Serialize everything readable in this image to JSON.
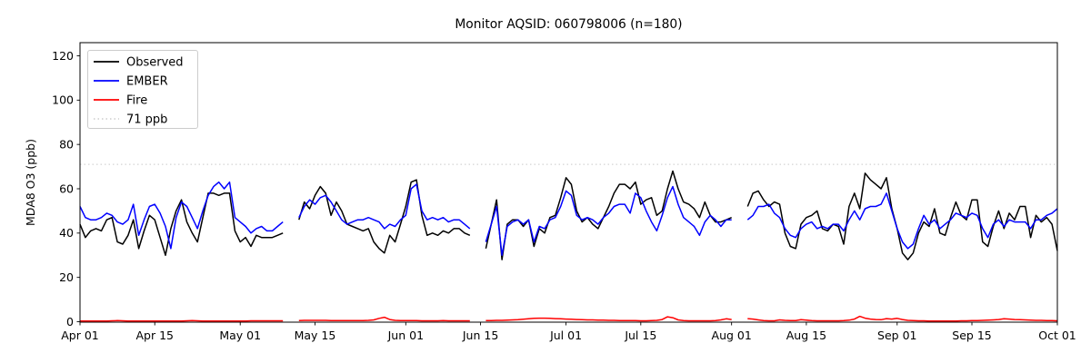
{
  "figure": {
    "background_color": "#ffffff",
    "text_color": "#000000",
    "spine_color": "#000000"
  },
  "chart_data": {
    "type": "line",
    "title": "Monitor AQSID: 060798006 (n=180)",
    "xlabel": "",
    "ylabel": "MDA8 O3 (ppb)",
    "ylim": [
      0,
      120
    ],
    "yticks": [
      0,
      20,
      40,
      60,
      80,
      100,
      120
    ],
    "grid": false,
    "legend_position": "upper-left",
    "x_unit": "day-index from Apr 01",
    "x_range_days": [
      0,
      183
    ],
    "xticks": [
      {
        "day": 0,
        "label": "Apr 01"
      },
      {
        "day": 14,
        "label": "Apr 15"
      },
      {
        "day": 30,
        "label": "May 01"
      },
      {
        "day": 44,
        "label": "May 15"
      },
      {
        "day": 61,
        "label": "Jun 01"
      },
      {
        "day": 75,
        "label": "Jun 15"
      },
      {
        "day": 91,
        "label": "Jul 01"
      },
      {
        "day": 105,
        "label": "Jul 15"
      },
      {
        "day": 122,
        "label": "Aug 01"
      },
      {
        "day": 136,
        "label": "Aug 15"
      },
      {
        "day": 153,
        "label": "Sep 01"
      },
      {
        "day": 167,
        "label": "Sep 15"
      },
      {
        "day": 183,
        "label": "Oct 01"
      }
    ],
    "reference_line": {
      "label": "71 ppb",
      "value": 71,
      "color": "#d4d4d4",
      "style": "dotted"
    },
    "data_gaps_days": [
      "May 10-11",
      "Jun 14-15",
      "Aug 02-03"
    ],
    "series": [
      {
        "name": "Observed",
        "color": "#000000",
        "values": [
          44,
          38,
          41,
          42,
          41,
          46,
          47,
          36,
          35,
          39,
          46,
          33,
          41,
          48,
          46,
          38,
          30,
          42,
          50,
          55,
          45,
          40,
          36,
          47,
          58,
          58,
          57,
          58,
          58,
          41,
          36,
          38,
          34,
          39,
          38,
          38,
          38,
          39,
          40,
          null,
          null,
          46,
          54,
          51,
          57,
          61,
          58,
          48,
          54,
          50,
          44,
          43,
          42,
          41,
          42,
          36,
          33,
          31,
          39,
          36,
          44,
          52,
          63,
          64,
          48,
          39,
          40,
          39,
          41,
          40,
          42,
          42,
          40,
          39,
          null,
          null,
          33,
          44,
          55,
          28,
          44,
          46,
          46,
          43,
          46,
          34,
          42,
          40,
          47,
          48,
          56,
          65,
          62,
          50,
          45,
          47,
          44,
          42,
          47,
          52,
          58,
          62,
          62,
          60,
          63,
          53,
          55,
          56,
          48,
          50,
          60,
          68,
          60,
          54,
          53,
          51,
          47,
          54,
          48,
          45,
          45,
          46,
          47,
          null,
          null,
          52,
          58,
          59,
          55,
          52,
          54,
          53,
          40,
          34,
          33,
          44,
          47,
          48,
          50,
          42,
          41,
          44,
          43,
          35,
          52,
          58,
          51,
          67,
          64,
          62,
          60,
          65,
          51,
          42,
          31,
          28,
          31,
          40,
          45,
          43,
          51,
          40,
          39,
          47,
          54,
          48,
          46,
          55,
          55,
          36,
          34,
          43,
          50,
          42,
          49,
          46,
          52,
          52,
          38,
          48,
          45,
          47,
          44,
          32
        ]
      },
      {
        "name": "EMBER",
        "color": "#0000ff",
        "values": [
          52,
          47,
          46,
          46,
          47,
          49,
          48,
          45,
          44,
          46,
          53,
          39,
          46,
          52,
          53,
          49,
          43,
          33,
          47,
          54,
          52,
          47,
          42,
          50,
          57,
          61,
          63,
          60,
          63,
          47,
          45,
          43,
          40,
          42,
          43,
          41,
          41,
          43,
          45,
          null,
          null,
          47,
          52,
          55,
          53,
          56,
          57,
          54,
          50,
          46,
          44,
          45,
          46,
          46,
          47,
          46,
          45,
          42,
          44,
          43,
          46,
          48,
          60,
          62,
          50,
          46,
          47,
          46,
          47,
          45,
          46,
          46,
          44,
          42,
          null,
          null,
          36,
          44,
          52,
          30,
          43,
          45,
          46,
          44,
          46,
          36,
          43,
          42,
          46,
          47,
          52,
          59,
          57,
          48,
          46,
          47,
          46,
          44,
          47,
          49,
          52,
          53,
          53,
          49,
          58,
          56,
          50,
          45,
          41,
          48,
          56,
          61,
          53,
          47,
          45,
          43,
          39,
          45,
          48,
          46,
          43,
          46,
          46,
          null,
          null,
          46,
          48,
          52,
          52,
          53,
          49,
          47,
          42,
          39,
          38,
          42,
          44,
          45,
          42,
          43,
          42,
          44,
          44,
          41,
          46,
          50,
          46,
          51,
          52,
          52,
          53,
          58,
          50,
          42,
          36,
          33,
          35,
          42,
          48,
          44,
          46,
          42,
          44,
          46,
          49,
          48,
          47,
          49,
          48,
          42,
          38,
          44,
          46,
          43,
          46,
          45,
          45,
          45,
          42,
          46,
          46,
          48,
          49,
          51
        ]
      },
      {
        "name": "Fire",
        "color": "#ff0000",
        "values": [
          0.3,
          0.3,
          0.3,
          0.3,
          0.3,
          0.3,
          0.4,
          0.5,
          0.4,
          0.3,
          0.3,
          0.3,
          0.3,
          0.3,
          0.3,
          0.3,
          0.3,
          0.3,
          0.3,
          0.3,
          0.4,
          0.5,
          0.4,
          0.3,
          0.3,
          0.3,
          0.3,
          0.3,
          0.3,
          0.3,
          0.3,
          0.3,
          0.4,
          0.4,
          0.4,
          0.4,
          0.4,
          0.4,
          0.4,
          null,
          null,
          0.5,
          0.6,
          0.6,
          0.6,
          0.6,
          0.6,
          0.5,
          0.5,
          0.5,
          0.5,
          0.5,
          0.5,
          0.5,
          0.6,
          0.8,
          1.5,
          2.0,
          1.0,
          0.6,
          0.5,
          0.5,
          0.5,
          0.5,
          0.4,
          0.4,
          0.4,
          0.4,
          0.5,
          0.4,
          0.4,
          0.4,
          0.4,
          0.4,
          null,
          null,
          0.5,
          0.5,
          0.6,
          0.6,
          0.7,
          0.8,
          0.9,
          1.1,
          1.3,
          1.5,
          1.6,
          1.6,
          1.5,
          1.4,
          1.3,
          1.2,
          1.1,
          1.0,
          0.9,
          0.8,
          0.8,
          0.7,
          0.7,
          0.6,
          0.6,
          0.5,
          0.5,
          0.5,
          0.5,
          0.4,
          0.4,
          0.5,
          0.6,
          1.0,
          2.2,
          1.8,
          0.8,
          0.5,
          0.4,
          0.4,
          0.4,
          0.4,
          0.4,
          0.5,
          0.8,
          1.3,
          1.0,
          null,
          null,
          1.4,
          1.2,
          0.8,
          0.5,
          0.4,
          0.4,
          0.8,
          0.6,
          0.5,
          0.5,
          0.9,
          0.7,
          0.5,
          0.4,
          0.4,
          0.4,
          0.4,
          0.4,
          0.5,
          0.7,
          1.2,
          2.4,
          1.6,
          1.2,
          1.0,
          0.9,
          1.4,
          1.2,
          1.5,
          1.0,
          0.6,
          0.5,
          0.4,
          0.4,
          0.3,
          0.3,
          0.3,
          0.3,
          0.3,
          0.3,
          0.4,
          0.4,
          0.5,
          0.5,
          0.6,
          0.7,
          0.8,
          1.0,
          1.3,
          1.2,
          1.0,
          0.9,
          0.8,
          0.7,
          0.6,
          0.6,
          0.5,
          0.5,
          0.4
        ]
      }
    ]
  }
}
